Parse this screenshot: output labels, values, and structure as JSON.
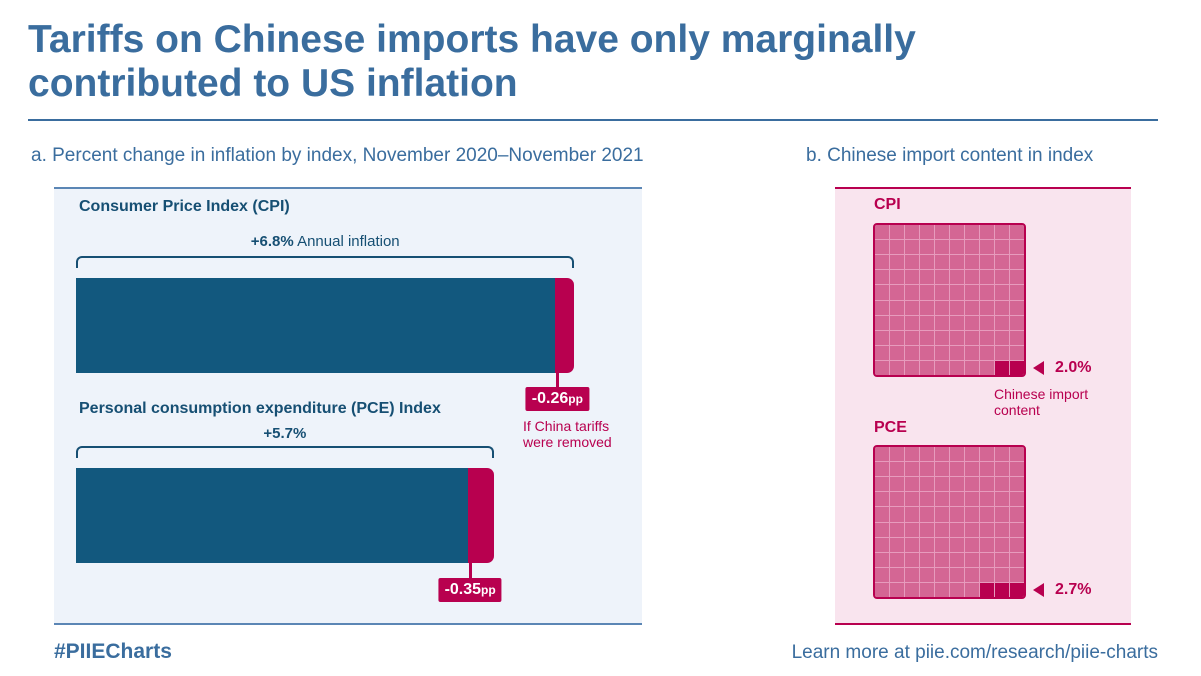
{
  "title": "Tariffs on Chinese imports have only marginally contributed to US inflation",
  "footer": {
    "hashtag": "#PIIECharts",
    "link": "Learn more at piie.com/research/piie-charts"
  },
  "colors": {
    "title": "#3a6d9e",
    "bar": "#12587e",
    "tariff": "#b8004f",
    "waffle": "#d46694"
  },
  "chart_data": [
    {
      "type": "bar",
      "title": "a. Percent change in inflation by index, November 2020–November 2021",
      "orientation": "horizontal",
      "series": [
        {
          "name": "Consumer Price Index (CPI)",
          "total_label": "+6.8%",
          "total_suffix": "Annual inflation",
          "value": 6.8,
          "tariff_effect": -0.26,
          "tariff_label": "-0.26",
          "unit": "pp",
          "note": "If China tariffs were removed"
        },
        {
          "name": "Personal consumption expenditure (PCE) Index",
          "total_label": "+5.7%",
          "total_suffix": "",
          "value": 5.7,
          "tariff_effect": -0.35,
          "tariff_label": "-0.35",
          "unit": "pp"
        }
      ]
    },
    {
      "type": "waffle",
      "title": "b. Chinese import content in index",
      "grid": [
        10,
        10
      ],
      "series": [
        {
          "name": "CPI",
          "value": 2.0,
          "label": "2.0%",
          "highlighted_cells": 2,
          "note": "Chinese import content"
        },
        {
          "name": "PCE",
          "value": 2.7,
          "label": "2.7%",
          "highlighted_cells": 3
        }
      ]
    }
  ]
}
